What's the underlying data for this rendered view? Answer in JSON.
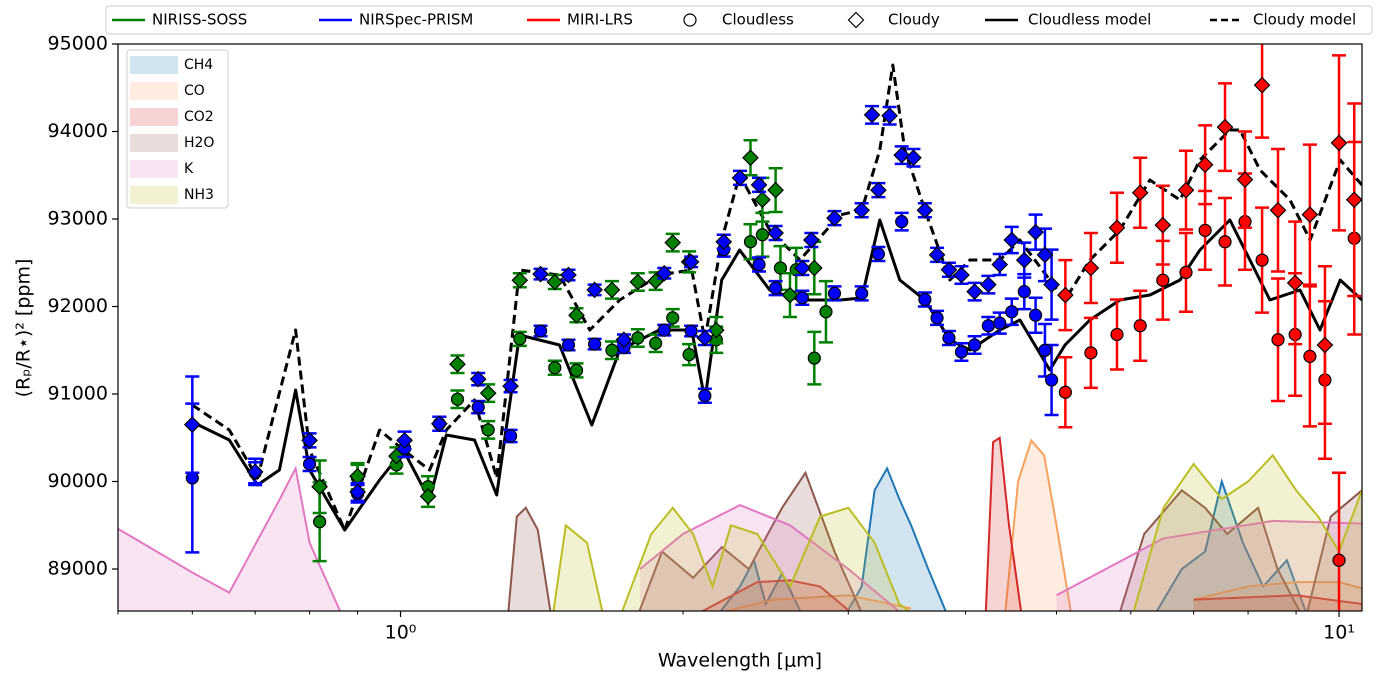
{
  "chart_data": {
    "type": "scatter",
    "log_x": true,
    "xlabel": "Wavelength [μm]",
    "ylabel": "(Rₚ/R⋆)² [ppm]",
    "xlim": [
      0.5,
      10.58
    ],
    "ylim": [
      88520,
      95000
    ],
    "xticks": [
      {
        "value": 1,
        "label": "10⁰"
      },
      {
        "value": 10,
        "label": "10¹"
      }
    ],
    "xminorticks": [
      0.5,
      0.6,
      0.7,
      0.8,
      0.9,
      2,
      3,
      4,
      5,
      6,
      7,
      8,
      9
    ],
    "yticks": [
      89000,
      90000,
      91000,
      92000,
      93000,
      94000,
      95000
    ],
    "legend_loc": "upper center",
    "instruments": [
      {
        "name": "NIRISS-SOSS",
        "color": "#008000",
        "points": [
          {
            "x": [
              0.82,
              0.9,
              0.99,
              1.07,
              1.15,
              1.24,
              1.34,
              1.46,
              1.54,
              1.68,
              1.79,
              1.87,
              1.95,
              2.03,
              2.17,
              2.36,
              2.43,
              2.54,
              2.64,
              2.76,
              2.84
            ],
            "values": [
              89540,
              90040,
              90190,
              89940,
              90940,
              90590,
              91630,
              91300,
              91270,
              91500,
              91640,
              91580,
              91870,
              91450,
              91620,
              92740,
              92820,
              92440,
              92420,
              91410,
              91940
            ],
            "errors": [
              450,
              150,
              100,
              120,
              100,
              100,
              80,
              80,
              80,
              100,
              100,
              100,
              100,
              120,
              150,
              200,
              250,
              250,
              250,
              300,
              350
            ]
          },
          {
            "x": [
              0.82,
              0.9,
              0.99,
              1.07,
              1.15,
              1.24,
              1.34,
              1.46,
              1.54,
              1.68,
              1.79,
              1.87,
              1.95,
              2.03,
              2.17,
              2.36,
              2.43,
              2.51,
              2.6,
              2.76
            ],
            "values": [
              89940,
              90060,
              90290,
              89830,
              91340,
              91010,
              92300,
              92280,
              91900,
              92190,
              92280,
              92290,
              92730,
              92510,
              91730,
              93700,
              93220,
              93330,
              92130,
              92440
            ],
            "errors": [
              300,
              150,
              100,
              120,
              100,
              100,
              80,
              80,
              80,
              100,
              100,
              100,
              100,
              120,
              150,
              200,
              250,
              250,
              250,
              300
            ]
          }
        ]
      },
      {
        "name": "NIRSpec-PRISM",
        "color": "#0000ff",
        "points": [
          {
            "x": [
              0.6,
              0.7,
              0.8,
              0.9,
              1.01,
              1.1,
              1.21,
              1.31,
              1.41,
              1.51,
              1.61,
              1.73,
              1.91,
              2.04,
              2.11,
              2.21,
              2.41,
              2.51,
              2.68,
              2.9,
              3.1,
              3.23,
              3.42,
              3.62,
              3.73,
              3.84,
              3.96,
              4.09,
              4.23,
              4.35,
              4.48,
              4.62,
              4.75,
              4.86,
              4.94
            ],
            "values": [
              90040,
              90100,
              90200,
              89860,
              90380,
              90660,
              90850,
              90520,
              91720,
              91560,
              91570,
              91530,
              91730,
              91720,
              90980,
              92650,
              92480,
              92210,
              92100,
              92150,
              92150,
              92600,
              92970,
              92080,
              91870,
              91640,
              91480,
              91560,
              91780,
              91810,
              91940,
              92170,
              91900,
              91500,
              91160
            ],
            "errors": [
              850,
              120,
              80,
              100,
              100,
              80,
              70,
              70,
              60,
              60,
              60,
              60,
              60,
              60,
              80,
              80,
              80,
              80,
              80,
              80,
              80,
              80,
              100,
              80,
              80,
              80,
              100,
              100,
              100,
              120,
              150,
              200,
              200,
              300,
              400
            ]
          },
          {
            "x": [
              0.6,
              0.7,
              0.8,
              0.9,
              1.01,
              1.1,
              1.21,
              1.31,
              1.41,
              1.51,
              1.61,
              1.73,
              1.91,
              2.04,
              2.11,
              2.21,
              2.3,
              2.41,
              2.51,
              2.68,
              2.74,
              2.9,
              3.1,
              3.18,
              3.23,
              3.32,
              3.42,
              3.52,
              3.62,
              3.73,
              3.84,
              3.96,
              4.09,
              4.23,
              4.35,
              4.48,
              4.62,
              4.75,
              4.86,
              4.94
            ],
            "values": [
              90650,
              90110,
              90470,
              89880,
              90470,
              90660,
              91170,
              91090,
              92370,
              92360,
              92190,
              91620,
              92380,
              92510,
              91640,
              92740,
              93470,
              93390,
              92840,
              92440,
              92760,
              93010,
              93100,
              94190,
              93330,
              94180,
              93730,
              93700,
              93100,
              92590,
              92420,
              92360,
              92170,
              92250,
              92480,
              92760,
              92530,
              92850,
              92590,
              92250
            ],
            "errors": [
              550,
              150,
              80,
              100,
              100,
              80,
              70,
              70,
              60,
              60,
              60,
              60,
              60,
              60,
              80,
              80,
              80,
              80,
              80,
              80,
              80,
              80,
              80,
              100,
              80,
              100,
              100,
              100,
              80,
              80,
              80,
              100,
              100,
              100,
              120,
              150,
              200,
              200,
              300,
              400
            ]
          }
        ]
      },
      {
        "name": "MIRI-LRS",
        "color": "#ff0000",
        "points": [
          {
            "x": [
              5.11,
              5.44,
              5.8,
              6.14,
              6.49,
              6.87,
              7.2,
              7.56,
              7.94,
              8.28,
              8.61,
              8.98,
              9.31,
              9.66,
              10.0,
              10.38
            ],
            "values": [
              91020,
              91470,
              91680,
              91780,
              92300,
              92390,
              92870,
              92740,
              92970,
              92530,
              91620,
              91680,
              91430,
              91160,
              89100,
              92780
            ],
            "errors": [
              400,
              400,
              400,
              400,
              450,
              450,
              450,
              500,
              550,
              600,
              700,
              700,
              800,
              900,
              1000,
              1100
            ]
          },
          {
            "x": [
              5.11,
              5.44,
              5.8,
              6.14,
              6.49,
              6.87,
              7.2,
              7.56,
              7.94,
              8.28,
              8.61,
              8.98,
              9.31,
              9.66,
              10.0,
              10.38
            ],
            "values": [
              92130,
              92440,
              92900,
              93300,
              92930,
              93330,
              93620,
              94050,
              93450,
              94530,
              93100,
              92270,
              93050,
              91560,
              93870,
              93220
            ],
            "errors": [
              400,
              400,
              400,
              400,
              450,
              450,
              450,
              500,
              550,
              600,
              700,
              700,
              800,
              900,
              1000,
              1100
            ]
          }
        ]
      }
    ],
    "markers": [
      {
        "name": "Cloudless",
        "marker": "circle"
      },
      {
        "name": "Cloudy",
        "marker": "diamond"
      }
    ],
    "models": [
      {
        "name": "Cloudless model",
        "color": "#000000",
        "dash": "solid",
        "x": [
          0.6,
          0.657,
          0.704,
          0.743,
          0.773,
          0.8,
          0.872,
          0.95,
          1.007,
          1.074,
          1.119,
          1.199,
          1.266,
          1.339,
          1.477,
          1.599,
          1.712,
          1.888,
          2.043,
          2.11,
          2.199,
          2.298,
          2.474,
          2.664,
          2.938,
          3.101,
          3.241,
          3.404,
          3.62,
          3.849,
          4.043,
          4.352,
          4.57,
          4.919,
          5.105,
          5.427,
          5.842,
          6.288,
          6.769,
          7.108,
          7.652,
          8.036,
          8.441,
          9.087,
          9.544,
          10.03,
          10.58
        ],
        "values": [
          90680,
          90474,
          89960,
          90131,
          91046,
          90131,
          89446,
          90017,
          90360,
          89789,
          90531,
          90474,
          89846,
          91674,
          91560,
          90646,
          91503,
          91731,
          91731,
          90931,
          92303,
          92646,
          92189,
          92074,
          92074,
          92097,
          92989,
          92303,
          92074,
          91617,
          91503,
          91731,
          91846,
          91274,
          91560,
          91846,
          92074,
          92131,
          92303,
          92646,
          92989,
          92531,
          92074,
          92189,
          91731,
          92303,
          92074
        ]
      },
      {
        "name": "Cloudy model",
        "color": "#000000",
        "dash": "dashed",
        "x": [
          0.6,
          0.657,
          0.704,
          0.773,
          0.8,
          0.872,
          0.95,
          1.007,
          1.074,
          1.119,
          1.199,
          1.266,
          1.339,
          1.477,
          1.591,
          1.712,
          1.888,
          2.043,
          2.11,
          2.199,
          2.298,
          2.474,
          2.664,
          2.938,
          3.101,
          3.241,
          3.346,
          3.446,
          3.62,
          3.849,
          4.043,
          4.352,
          4.57,
          4.919,
          5.105,
          5.427,
          5.842,
          6.288,
          6.769,
          7.108,
          7.652,
          7.843,
          8.237,
          8.867,
          9.314,
          10.03,
          10.58
        ],
        "values": [
          90874,
          90589,
          90040,
          91731,
          90360,
          89446,
          90589,
          90360,
          90131,
          90589,
          90931,
          90040,
          92417,
          92360,
          91731,
          92074,
          92360,
          92417,
          91617,
          92760,
          93503,
          92874,
          92531,
          93046,
          93103,
          93789,
          94760,
          93789,
          93103,
          92303,
          92531,
          92531,
          92760,
          92303,
          92074,
          92531,
          92874,
          93446,
          93217,
          93674,
          94017,
          94017,
          93560,
          93217,
          92760,
          93674,
          93389
        ]
      }
    ],
    "species_legend_loc": "upper left",
    "species": [
      {
        "name": "CH4",
        "color": "#1f77b4",
        "x": [
          2.15,
          2.3,
          2.38,
          2.45,
          2.55,
          2.7,
          2.8,
          2.95,
          3.1,
          3.2,
          3.3,
          3.4,
          3.5,
          3.65,
          3.85,
          5.0,
          6.3,
          6.8,
          7.2,
          7.5,
          7.9,
          8.3,
          8.8,
          9.3
        ],
        "values": [
          88400,
          88800,
          89100,
          88600,
          88950,
          88400,
          null,
          88400,
          88800,
          89900,
          90150,
          89800,
          89500,
          89000,
          88400,
          null,
          88400,
          89000,
          89200,
          90000,
          89300,
          88800,
          89100,
          88400
        ]
      },
      {
        "name": "CO",
        "color": "#f5a25d",
        "x": [
          2.0,
          2.5,
          3.0,
          3.5,
          4.0,
          4.4,
          4.55,
          4.7,
          4.85,
          5.0,
          5.2,
          6.0,
          7.0,
          8.0,
          9.0,
          10.0,
          10.58
        ],
        "values": [
          88400,
          88650,
          88700,
          88550,
          null,
          88400,
          90000,
          90470,
          90300,
          89500,
          88400,
          null,
          88650,
          88800,
          88850,
          88850,
          88780
        ]
      },
      {
        "name": "CO2",
        "color": "#d62728",
        "x": [
          2.0,
          2.4,
          2.6,
          2.8,
          3.1,
          3.5,
          4.2,
          4.28,
          4.35,
          4.45,
          4.6,
          5.0,
          7.0,
          9.0,
          10.58
        ],
        "values": [
          88400,
          88850,
          88870,
          88800,
          88400,
          null,
          88400,
          90450,
          90500,
          89500,
          88400,
          null,
          88650,
          88700,
          88600
        ]
      },
      {
        "name": "H2O",
        "color": "#8c564b",
        "x": [
          1.3,
          1.33,
          1.36,
          1.4,
          1.45,
          1.6,
          1.78,
          1.9,
          2.05,
          2.2,
          2.35,
          2.55,
          2.7,
          2.9,
          3.1,
          4.0,
          5.8,
          6.2,
          6.8,
          7.2,
          7.6,
          8.2,
          8.6,
          9.2,
          9.8,
          10.58
        ],
        "values": [
          88400,
          89600,
          89700,
          89450,
          88400,
          null,
          88400,
          89200,
          88900,
          89250,
          89000,
          89700,
          90100,
          89200,
          88500,
          null,
          88400,
          89400,
          89900,
          89700,
          89400,
          89700,
          89000,
          88400,
          89600,
          89900
        ]
      },
      {
        "name": "K",
        "color": "#e377c2",
        "x": [
          0.5,
          0.6,
          0.657,
          0.743,
          0.773,
          0.8,
          0.872,
          1.5,
          1.8,
          2.0,
          2.3,
          2.6,
          3.0,
          3.5,
          4.5,
          5.0,
          6.5,
          8.5,
          10.58
        ],
        "values": [
          89460,
          88960,
          88730,
          89790,
          90150,
          89300,
          88400,
          null,
          89000,
          89400,
          89730,
          89500,
          89000,
          88400,
          null,
          88700,
          89350,
          89550,
          89520
        ]
      },
      {
        "name": "NH3",
        "color": "#bcbd22",
        "x": [
          1.45,
          1.5,
          1.58,
          1.65,
          1.72,
          1.85,
          1.95,
          2.05,
          2.15,
          2.25,
          2.4,
          2.6,
          2.8,
          3.0,
          3.2,
          3.4,
          3.6,
          4.5,
          6.0,
          6.5,
          7.0,
          7.5,
          8.0,
          8.5,
          9.0,
          9.5,
          10.0,
          10.58
        ],
        "values": [
          88400,
          89500,
          89300,
          88400,
          88500,
          89400,
          89700,
          89400,
          88800,
          89500,
          89400,
          88800,
          89600,
          89700,
          89300,
          88600,
          88400,
          null,
          88400,
          89700,
          90200,
          89800,
          90000,
          90300,
          89900,
          89600,
          89200,
          89900
        ]
      }
    ]
  }
}
